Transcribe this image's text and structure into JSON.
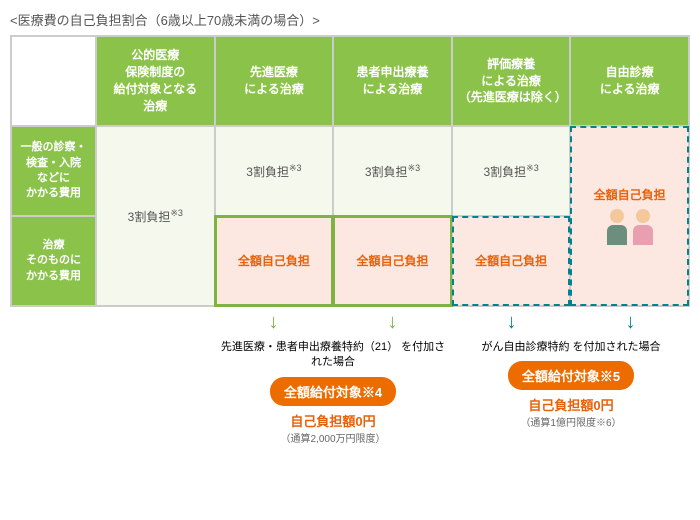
{
  "title": "<医療費の自己負担割合（6歳以上70歳未満の場合）>",
  "cols": [
    "公的医療\n保険制度の\n給付対象となる\n治療",
    "先進医療\nによる治療",
    "患者申出療養\nによる治療",
    "評価療養\nによる治療\n（先進医療は除く）",
    "自由診療\nによる治療"
  ],
  "rows": [
    "一般の診察・\n検査・入院\nなどに\nかかる費用",
    "治療\nそのものに\nかかる費用"
  ],
  "v30": "3割負担",
  "vfull": "全額自己負担",
  "note3": "※3",
  "c1": {
    "t": "先進医療・患者申出療養特約（21）\nを付加された場合",
    "b": "全額給付対象※4",
    "r": "自己負担額0円",
    "s": "（通算2,000万円限度）"
  },
  "c2": {
    "t": "がん自由診療特約\nを付加された場合",
    "b": "全額給付対象※5",
    "r": "自己負担額0円",
    "s": "（通算1億円限度※6）"
  },
  "colors": {
    "green": "#8bc34a",
    "teal": "#00838f",
    "orange": "#ed6c00",
    "red": "#e8620a"
  }
}
